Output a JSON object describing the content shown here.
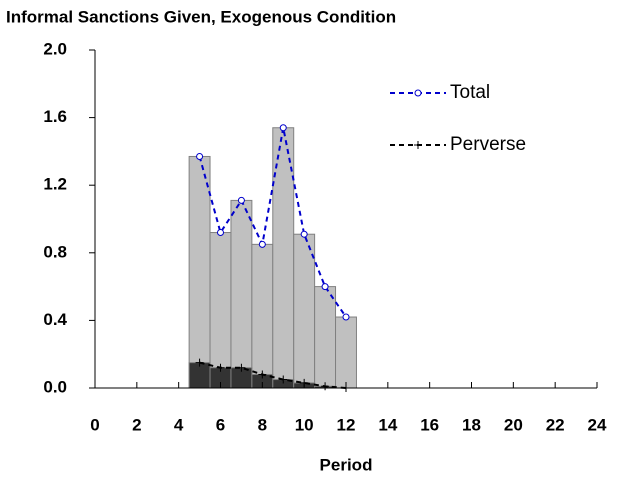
{
  "chart_data": {
    "type": "bar-line",
    "title": "Informal Sanctions Given, Exogenous Condition",
    "x_label": "Period",
    "x": [
      5,
      6,
      7,
      8,
      9,
      10,
      11,
      12
    ],
    "series": [
      {
        "name": "Total",
        "color": "#0000cc",
        "bar_color": "#c0c0c0",
        "marker": "circle",
        "values": [
          1.37,
          0.92,
          1.11,
          0.85,
          1.54,
          0.91,
          0.6,
          0.42
        ]
      },
      {
        "name": "Perverse",
        "color": "#000000",
        "bar_color": "#333333",
        "marker": "plus",
        "values": [
          0.15,
          0.12,
          0.12,
          0.08,
          0.05,
          0.03,
          0.01,
          0.0
        ]
      }
    ],
    "xlim": [
      0,
      24
    ],
    "xticks": [
      0,
      2,
      4,
      6,
      8,
      10,
      12,
      14,
      16,
      18,
      20,
      22,
      24
    ],
    "ylim": [
      0,
      2
    ],
    "yticks": [
      {
        "value": 0,
        "label": "0.0"
      },
      0.4,
      0.8,
      1.2,
      1.6,
      {
        "value": 2,
        "label": "2.0"
      }
    ],
    "legend": "upper-right",
    "grid": false
  }
}
